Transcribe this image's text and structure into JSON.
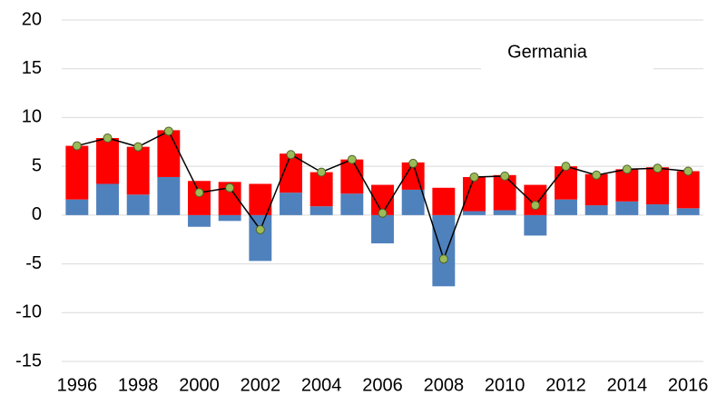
{
  "chart_data": {
    "type": "bar",
    "title": "Germania",
    "categories": [
      "1996",
      null,
      "1998",
      null,
      "2000",
      null,
      "2002",
      null,
      "2004",
      null,
      "2006",
      null,
      "2008",
      null,
      "2010",
      null,
      "2012",
      null,
      "2014",
      null,
      "2016"
    ],
    "series": [
      {
        "color": "#4f81bd",
        "values": [
          1.6,
          3.2,
          2.1,
          3.9,
          -1.2,
          -0.6,
          -4.7,
          2.3,
          0.9,
          2.2,
          -2.9,
          2.6,
          -7.3,
          0.4,
          0.5,
          -2.1,
          1.6,
          1.0,
          1.4,
          1.1,
          0.7
        ]
      },
      {
        "color": "#ff0000",
        "values": [
          5.5,
          4.7,
          4.9,
          4.8,
          3.5,
          3.4,
          3.2,
          4.0,
          3.5,
          3.5,
          3.1,
          2.8,
          2.8,
          3.5,
          3.6,
          3.1,
          3.4,
          3.2,
          3.3,
          3.8,
          3.8
        ]
      },
      {
        "type": "line",
        "color": "#000000",
        "marker_color": "#9bbb59",
        "values": [
          7.1,
          7.9,
          7.0,
          8.6,
          2.3,
          2.8,
          -1.5,
          6.2,
          4.4,
          5.7,
          0.2,
          5.3,
          -4.5,
          3.9,
          4.0,
          1.0,
          5.0,
          4.1,
          4.7,
          4.8,
          4.5
        ]
      }
    ],
    "ylim": [
      -15,
      20
    ],
    "yticks": [
      -15,
      -10,
      -5,
      0,
      5,
      10,
      15,
      20
    ],
    "grid": true
  }
}
